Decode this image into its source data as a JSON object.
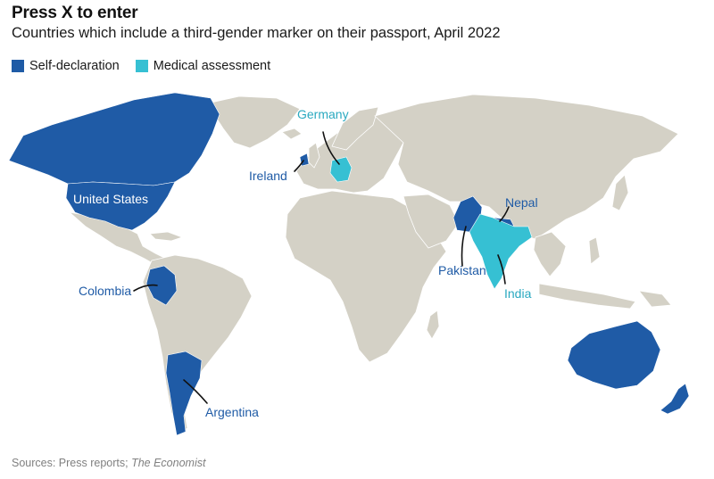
{
  "header": {
    "title": "Press X to enter",
    "subtitle": "Countries which include a third-gender marker on their passport, April 2022"
  },
  "legend": {
    "items": [
      {
        "label": "Self-declaration",
        "color": "#1f5ba6"
      },
      {
        "label": "Medical assessment",
        "color": "#36c0d3"
      }
    ]
  },
  "colors": {
    "land": "#d4d1c6",
    "self_declaration": "#1f5ba6",
    "medical_assessment": "#36c0d3",
    "label_dark": "#1f5ba6",
    "label_light": "#2aa9c0"
  },
  "map": {
    "countries": {
      "united_states": {
        "label": "United States",
        "category": "Self-declaration"
      },
      "germany": {
        "label": "Germany",
        "category": "Medical assessment"
      },
      "ireland": {
        "label": "Ireland",
        "category": "Self-declaration"
      },
      "nepal": {
        "label": "Nepal",
        "category": "Self-declaration"
      },
      "pakistan": {
        "label": "Pakistan",
        "category": "Self-declaration"
      },
      "india": {
        "label": "India",
        "category": "Medical assessment"
      },
      "colombia": {
        "label": "Colombia",
        "category": "Self-declaration"
      },
      "argentina": {
        "label": "Argentina",
        "category": "Self-declaration"
      }
    }
  },
  "footer": {
    "source_prefix": "Sources: Press reports; ",
    "source_publication": "The Economist"
  }
}
